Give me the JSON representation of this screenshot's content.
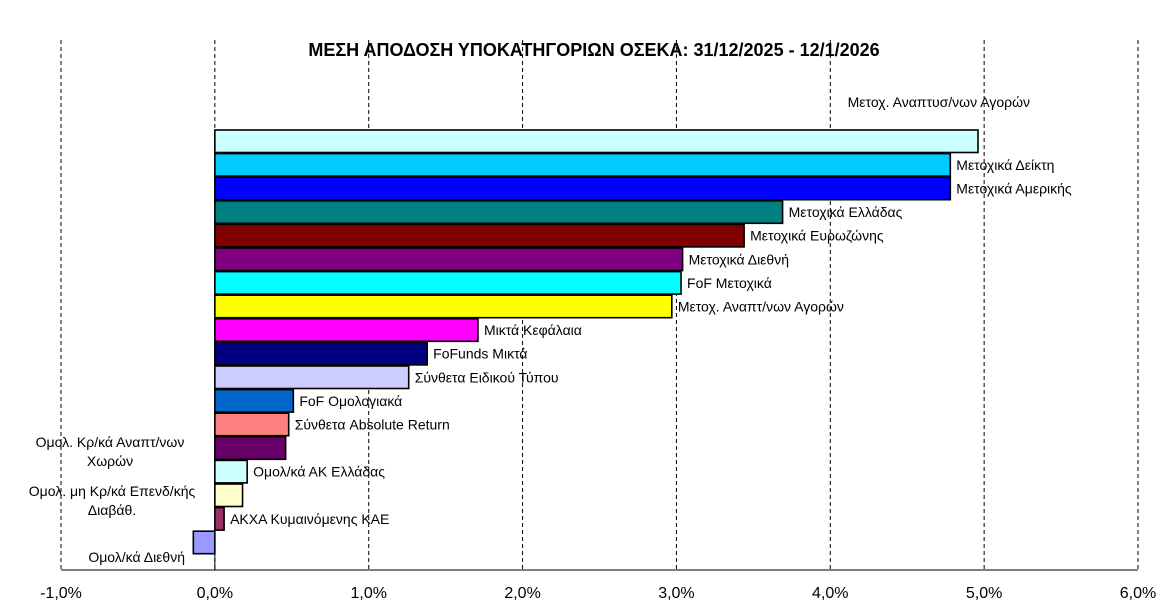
{
  "chart_data": {
    "type": "bar",
    "orientation": "horizontal",
    "title": "ΜΕΣΗ ΑΠΟΔΟΣΗ ΥΠΟΚΑΤΗΓΟΡΙΩΝ ΟΣΕΚΑ: 31/12/2025 - 12/1/2026",
    "xlim": [
      -0.01,
      0.06
    ],
    "x_ticks": [
      "-1,0%",
      "0,0%",
      "1,0%",
      "2,0%",
      "3,0%",
      "4,0%",
      "5,0%",
      "6,0%"
    ],
    "grid": "vertical-dashed",
    "categories": [
      "Μετοχ. Αναπτυσ/νων Αγορών",
      "Μετοχικά Δείκτη",
      "Μετοχικά Αμερικής",
      "Μετοχικά Ελλάδας",
      "Μετοχικά Ευρωζώνης",
      "Μετοχικά Διεθνή",
      "FoF Μετοχικά",
      "Μετοχ. Αναπτ/νων Αγορών",
      "Μικτά Κεφάλαια",
      "FoFunds Μικτά",
      "Σύνθετα Ειδικού Τύπου",
      "FoF Ομολογιακά",
      "Σύνθετα Absolute Return",
      "Ομολ. Κρ/κά Αναπτ/νων Χωρών",
      "Ομολ/κά ΑΚ Ελλάδας",
      "Ομολ. μη Κρ/κά Επενδ/κής Διαβάθ.",
      "ΑΚΧΑ Κυμαινόμενης ΚΑΕ",
      "Ομολ/κά Διεθνή"
    ],
    "values": [
      0.0496,
      0.0478,
      0.0478,
      0.0369,
      0.0344,
      0.0304,
      0.0303,
      0.0297,
      0.0171,
      0.0138,
      0.0126,
      0.0051,
      0.0048,
      0.0046,
      0.0021,
      0.0018,
      0.0006,
      -0.0014
    ],
    "colors": [
      "#CCFFFF",
      "#00CCFF",
      "#0000FF",
      "#008080",
      "#800000",
      "#800080",
      "#00FFFF",
      "#FFFF00",
      "#FF00FF",
      "#000080",
      "#CCCCFF",
      "#0066CC",
      "#FF8080",
      "#660066",
      "#CCFFFF",
      "#FFFFCC",
      "#993366",
      "#9999FF"
    ]
  }
}
